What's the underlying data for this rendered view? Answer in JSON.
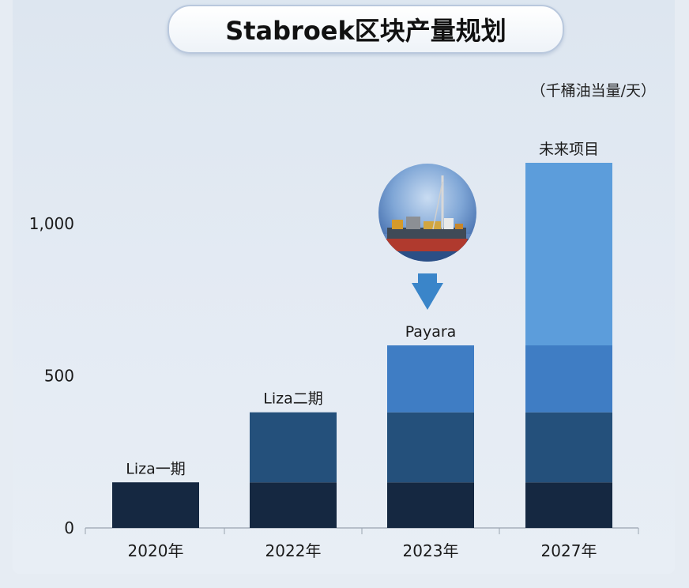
{
  "title": "Stabroek区块产量规划",
  "unit_label": "（千桶油当量/天）",
  "colors": {
    "panel_bg": "#e3eaf3",
    "liza1": "#152841",
    "liza2": "#24507b",
    "payara": "#3f7dc4",
    "future": "#5c9ddb",
    "arrow": "#3a85c9"
  },
  "chart_data": {
    "type": "bar",
    "stacked": true,
    "categories": [
      "2020年",
      "2022年",
      "2023年",
      "2027年"
    ],
    "ylim": [
      0,
      1200
    ],
    "yticks": [
      0,
      500,
      1000
    ],
    "ytick_labels": [
      "0",
      "500",
      "1,000"
    ],
    "series": [
      {
        "name": "Liza一期",
        "color": "#152841",
        "values": [
          150,
          150,
          150,
          150
        ]
      },
      {
        "name": "Liza二期",
        "color": "#24507b",
        "values": [
          0,
          230,
          230,
          230
        ]
      },
      {
        "name": "Payara",
        "color": "#3f7dc4",
        "values": [
          0,
          0,
          220,
          220
        ]
      },
      {
        "name": "未来项目",
        "color": "#5c9ddb",
        "values": [
          0,
          0,
          0,
          600
        ]
      }
    ],
    "bar_labels": [
      "Liza一期",
      "Liza二期",
      "Payara",
      "未来项目"
    ],
    "gridlines": false
  },
  "illustration": {
    "icon": "fpso-vessel-icon",
    "pointer": "down-arrow-icon"
  }
}
